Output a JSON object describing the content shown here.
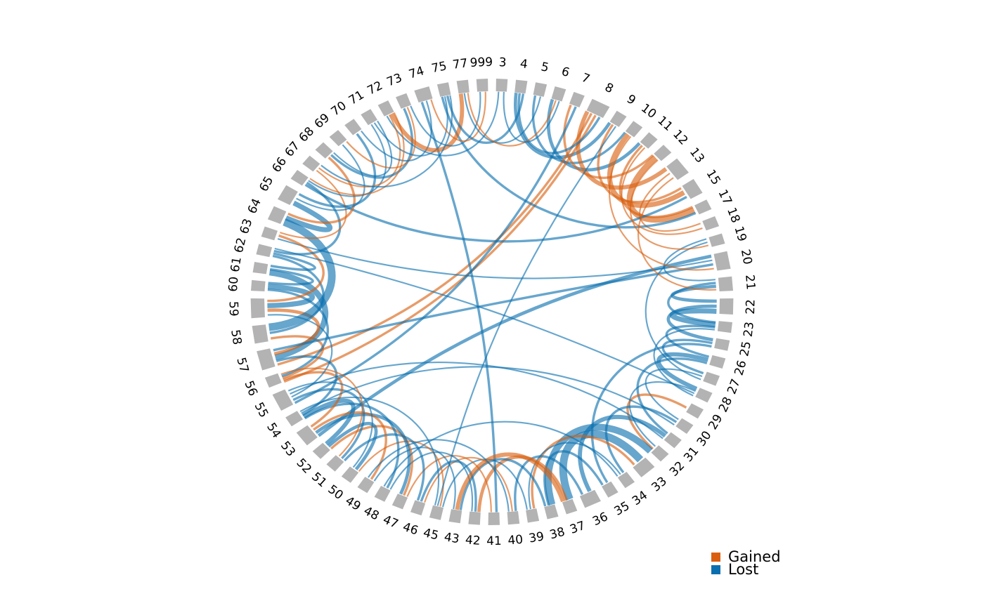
{
  "colors": {
    "segment": "#b3b3b3",
    "gained": "#d95f0e",
    "lost": "#0a6faf",
    "background": "#ffffff"
  },
  "legend": {
    "items": [
      {
        "label": "Gained",
        "color": "#d95f0e"
      },
      {
        "label": "Lost",
        "color": "#0a6faf"
      }
    ]
  },
  "chart_data": {
    "type": "chord",
    "segments": [
      "3",
      "4",
      "5",
      "6",
      "7",
      "8",
      "9",
      "10",
      "11",
      "12",
      "13",
      "15",
      "17",
      "18",
      "19",
      "20",
      "21",
      "22",
      "23",
      "25",
      "26",
      "27",
      "28",
      "29",
      "30",
      "31",
      "32",
      "33",
      "34",
      "35",
      "36",
      "37",
      "38",
      "39",
      "40",
      "41",
      "42",
      "43",
      "45",
      "46",
      "47",
      "48",
      "49",
      "50",
      "51",
      "52",
      "53",
      "54",
      "55",
      "56",
      "57",
      "58",
      "59",
      "60",
      "61",
      "62",
      "63",
      "64",
      "65",
      "66",
      "67",
      "68",
      "69",
      "70",
      "71",
      "72",
      "73",
      "74",
      "75",
      "77",
      "999"
    ],
    "segment_sizes": {
      "8": 1.4,
      "13": 1.4,
      "15": 1.3,
      "20": 1.4,
      "21": 1.2,
      "22": 1.3,
      "33": 1.3,
      "36": 1.3,
      "53": 1.3,
      "55": 1.4,
      "57": 1.5,
      "58": 1.4,
      "59": 1.5,
      "64": 1.2,
      "65": 1.3,
      "74": 1.2
    },
    "links": [
      {
        "from": "3",
        "to": "72",
        "status": "lost",
        "weight": 1
      },
      {
        "from": "4",
        "to": "9",
        "status": "lost",
        "weight": 3
      },
      {
        "from": "5",
        "to": "10",
        "status": "lost",
        "weight": 2
      },
      {
        "from": "6",
        "to": "11",
        "status": "lost",
        "weight": 3
      },
      {
        "from": "7",
        "to": "12",
        "status": "gained",
        "weight": 2
      },
      {
        "from": "8",
        "to": "13",
        "status": "gained",
        "weight": 4
      },
      {
        "from": "8",
        "to": "57",
        "status": "gained",
        "weight": 2
      },
      {
        "from": "8",
        "to": "56",
        "status": "gained",
        "weight": 2
      },
      {
        "from": "7",
        "to": "55",
        "status": "lost",
        "weight": 2
      },
      {
        "from": "8",
        "to": "4",
        "status": "lost",
        "weight": 2
      },
      {
        "from": "9",
        "to": "15",
        "status": "gained",
        "weight": 2
      },
      {
        "from": "10",
        "to": "15",
        "status": "gained",
        "weight": 5
      },
      {
        "from": "11",
        "to": "17",
        "status": "gained",
        "weight": 2
      },
      {
        "from": "12",
        "to": "17",
        "status": "gained",
        "weight": 6
      },
      {
        "from": "13",
        "to": "18",
        "status": "gained",
        "weight": 1
      },
      {
        "from": "15",
        "to": "66",
        "status": "lost",
        "weight": 2
      },
      {
        "from": "17",
        "to": "75",
        "status": "lost",
        "weight": 2
      },
      {
        "from": "19",
        "to": "21",
        "status": "lost",
        "weight": 1
      },
      {
        "from": "20",
        "to": "53",
        "status": "lost",
        "weight": 3
      },
      {
        "from": "20",
        "to": "63",
        "status": "lost",
        "weight": 1
      },
      {
        "from": "21",
        "to": "23",
        "status": "lost",
        "weight": 2
      },
      {
        "from": "21",
        "to": "22",
        "status": "lost",
        "weight": 3
      },
      {
        "from": "22",
        "to": "25",
        "status": "lost",
        "weight": 3
      },
      {
        "from": "22",
        "to": "23",
        "status": "lost",
        "weight": 5
      },
      {
        "from": "23",
        "to": "26",
        "status": "lost",
        "weight": 2
      },
      {
        "from": "25",
        "to": "27",
        "status": "lost",
        "weight": 2
      },
      {
        "from": "25",
        "to": "35",
        "status": "lost",
        "weight": 2
      },
      {
        "from": "26",
        "to": "28",
        "status": "lost",
        "weight": 4
      },
      {
        "from": "26",
        "to": "31",
        "status": "lost",
        "weight": 2
      },
      {
        "from": "27",
        "to": "30",
        "status": "lost",
        "weight": 1
      },
      {
        "from": "28",
        "to": "32",
        "status": "lost",
        "weight": 1
      },
      {
        "from": "29",
        "to": "32",
        "status": "gained",
        "weight": 2
      },
      {
        "from": "30",
        "to": "34",
        "status": "lost",
        "weight": 2
      },
      {
        "from": "31",
        "to": "36",
        "status": "lost",
        "weight": 4
      },
      {
        "from": "32",
        "to": "38",
        "status": "lost",
        "weight": 7
      },
      {
        "from": "33",
        "to": "37",
        "status": "lost",
        "weight": 8
      },
      {
        "from": "33",
        "to": "39",
        "status": "gained",
        "weight": 2
      },
      {
        "from": "34",
        "to": "39",
        "status": "lost",
        "weight": 1
      },
      {
        "from": "35",
        "to": "38",
        "status": "lost",
        "weight": 2
      },
      {
        "from": "36",
        "to": "40",
        "status": "lost",
        "weight": 2
      },
      {
        "from": "37",
        "to": "42",
        "status": "gained",
        "weight": 3
      },
      {
        "from": "38",
        "to": "43",
        "status": "lost",
        "weight": 2
      },
      {
        "from": "39",
        "to": "45",
        "status": "lost",
        "weight": 1
      },
      {
        "from": "40",
        "to": "46",
        "status": "gained",
        "weight": 1
      },
      {
        "from": "41",
        "to": "74",
        "status": "lost",
        "weight": 2
      },
      {
        "from": "41",
        "to": "47",
        "status": "gained",
        "weight": 1
      },
      {
        "from": "42",
        "to": "46",
        "status": "lost",
        "weight": 2
      },
      {
        "from": "42",
        "to": "48",
        "status": "lost",
        "weight": 1
      },
      {
        "from": "43",
        "to": "37",
        "status": "gained",
        "weight": 4
      },
      {
        "from": "43",
        "to": "49",
        "status": "lost",
        "weight": 1
      },
      {
        "from": "45",
        "to": "50",
        "status": "gained",
        "weight": 1
      },
      {
        "from": "46",
        "to": "51",
        "status": "lost",
        "weight": 2
      },
      {
        "from": "47",
        "to": "52",
        "status": "gained",
        "weight": 2
      },
      {
        "from": "47",
        "to": "53",
        "status": "lost",
        "weight": 3
      },
      {
        "from": "48",
        "to": "54",
        "status": "lost",
        "weight": 2
      },
      {
        "from": "49",
        "to": "53",
        "status": "gained",
        "weight": 2
      },
      {
        "from": "50",
        "to": "52",
        "status": "lost",
        "weight": 3
      },
      {
        "from": "51",
        "to": "55",
        "status": "lost",
        "weight": 2
      },
      {
        "from": "52",
        "to": "54",
        "status": "lost",
        "weight": 4
      },
      {
        "from": "53",
        "to": "56",
        "status": "gained",
        "weight": 2
      },
      {
        "from": "54",
        "to": "57",
        "status": "lost",
        "weight": 2
      },
      {
        "from": "55",
        "to": "59",
        "status": "lost",
        "weight": 1
      },
      {
        "from": "55",
        "to": "31",
        "status": "lost",
        "weight": 1
      },
      {
        "from": "56",
        "to": "58",
        "status": "gained",
        "weight": 2
      },
      {
        "from": "56",
        "to": "60",
        "status": "lost",
        "weight": 2
      },
      {
        "from": "57",
        "to": "61",
        "status": "lost",
        "weight": 6
      },
      {
        "from": "57",
        "to": "59",
        "status": "gained",
        "weight": 3
      },
      {
        "from": "58",
        "to": "62",
        "status": "lost",
        "weight": 2
      },
      {
        "from": "58",
        "to": "64",
        "status": "lost",
        "weight": 8
      },
      {
        "from": "59",
        "to": "60",
        "status": "lost",
        "weight": 5
      },
      {
        "from": "59",
        "to": "63",
        "status": "gained",
        "weight": 2
      },
      {
        "from": "60",
        "to": "61",
        "status": "lost",
        "weight": 2
      },
      {
        "from": "61",
        "to": "62",
        "status": "lost",
        "weight": 2
      },
      {
        "from": "62",
        "to": "66",
        "status": "lost",
        "weight": 2
      },
      {
        "from": "63",
        "to": "67",
        "status": "gained",
        "weight": 1
      },
      {
        "from": "64",
        "to": "65",
        "status": "lost",
        "weight": 5
      },
      {
        "from": "64",
        "to": "68",
        "status": "gained",
        "weight": 2
      },
      {
        "from": "65",
        "to": "69",
        "status": "lost",
        "weight": 1
      },
      {
        "from": "65",
        "to": "70",
        "status": "lost",
        "weight": 2
      },
      {
        "from": "66",
        "to": "71",
        "status": "lost",
        "weight": 1
      },
      {
        "from": "67",
        "to": "72",
        "status": "gained",
        "weight": 1
      },
      {
        "from": "68",
        "to": "73",
        "status": "lost",
        "weight": 2
      },
      {
        "from": "69",
        "to": "73",
        "status": "gained",
        "weight": 1
      },
      {
        "from": "70",
        "to": "74",
        "status": "lost",
        "weight": 1
      },
      {
        "from": "71",
        "to": "75",
        "status": "lost",
        "weight": 1
      },
      {
        "from": "72",
        "to": "77",
        "status": "gained",
        "weight": 4
      },
      {
        "from": "73",
        "to": "999",
        "status": "lost",
        "weight": 1
      },
      {
        "from": "74",
        "to": "999",
        "status": "gained",
        "weight": 1
      },
      {
        "from": "75",
        "to": "4",
        "status": "lost",
        "weight": 2
      },
      {
        "from": "77",
        "to": "5",
        "status": "lost",
        "weight": 1
      },
      {
        "from": "77",
        "to": "6",
        "status": "gained",
        "weight": 1
      },
      {
        "from": "3",
        "to": "6",
        "status": "lost",
        "weight": 1
      },
      {
        "from": "9",
        "to": "45",
        "status": "lost",
        "weight": 1
      },
      {
        "from": "11",
        "to": "18",
        "status": "gained",
        "weight": 1
      },
      {
        "from": "19",
        "to": "27",
        "status": "lost",
        "weight": 1
      },
      {
        "from": "20",
        "to": "57",
        "status": "lost",
        "weight": 2
      },
      {
        "from": "28",
        "to": "62",
        "status": "lost",
        "weight": 1
      },
      {
        "from": "30",
        "to": "54",
        "status": "lost",
        "weight": 1
      },
      {
        "from": "34",
        "to": "48",
        "status": "lost",
        "weight": 1
      },
      {
        "from": "36",
        "to": "44",
        "status": "lost",
        "weight": 1
      },
      {
        "from": "40",
        "to": "49",
        "status": "lost",
        "weight": 1
      },
      {
        "from": "44",
        "to": "52",
        "status": "gained",
        "weight": 1
      },
      {
        "from": "45",
        "to": "54",
        "status": "lost",
        "weight": 1
      },
      {
        "from": "12",
        "to": "19",
        "status": "gained",
        "weight": 1
      },
      {
        "from": "13",
        "to": "21",
        "status": "gained",
        "weight": 1
      },
      {
        "from": "10",
        "to": "20",
        "status": "gained",
        "weight": 1
      },
      {
        "from": "66",
        "to": "72",
        "status": "gained",
        "weight": 1
      },
      {
        "from": "67",
        "to": "75",
        "status": "lost",
        "weight": 1
      },
      {
        "from": "68",
        "to": "71",
        "status": "lost",
        "weight": 1
      },
      {
        "from": "23",
        "to": "28",
        "status": "lost",
        "weight": 1
      },
      {
        "from": "50",
        "to": "55",
        "status": "lost",
        "weight": 1
      },
      {
        "from": "51",
        "to": "56",
        "status": "gained",
        "weight": 1
      }
    ]
  }
}
